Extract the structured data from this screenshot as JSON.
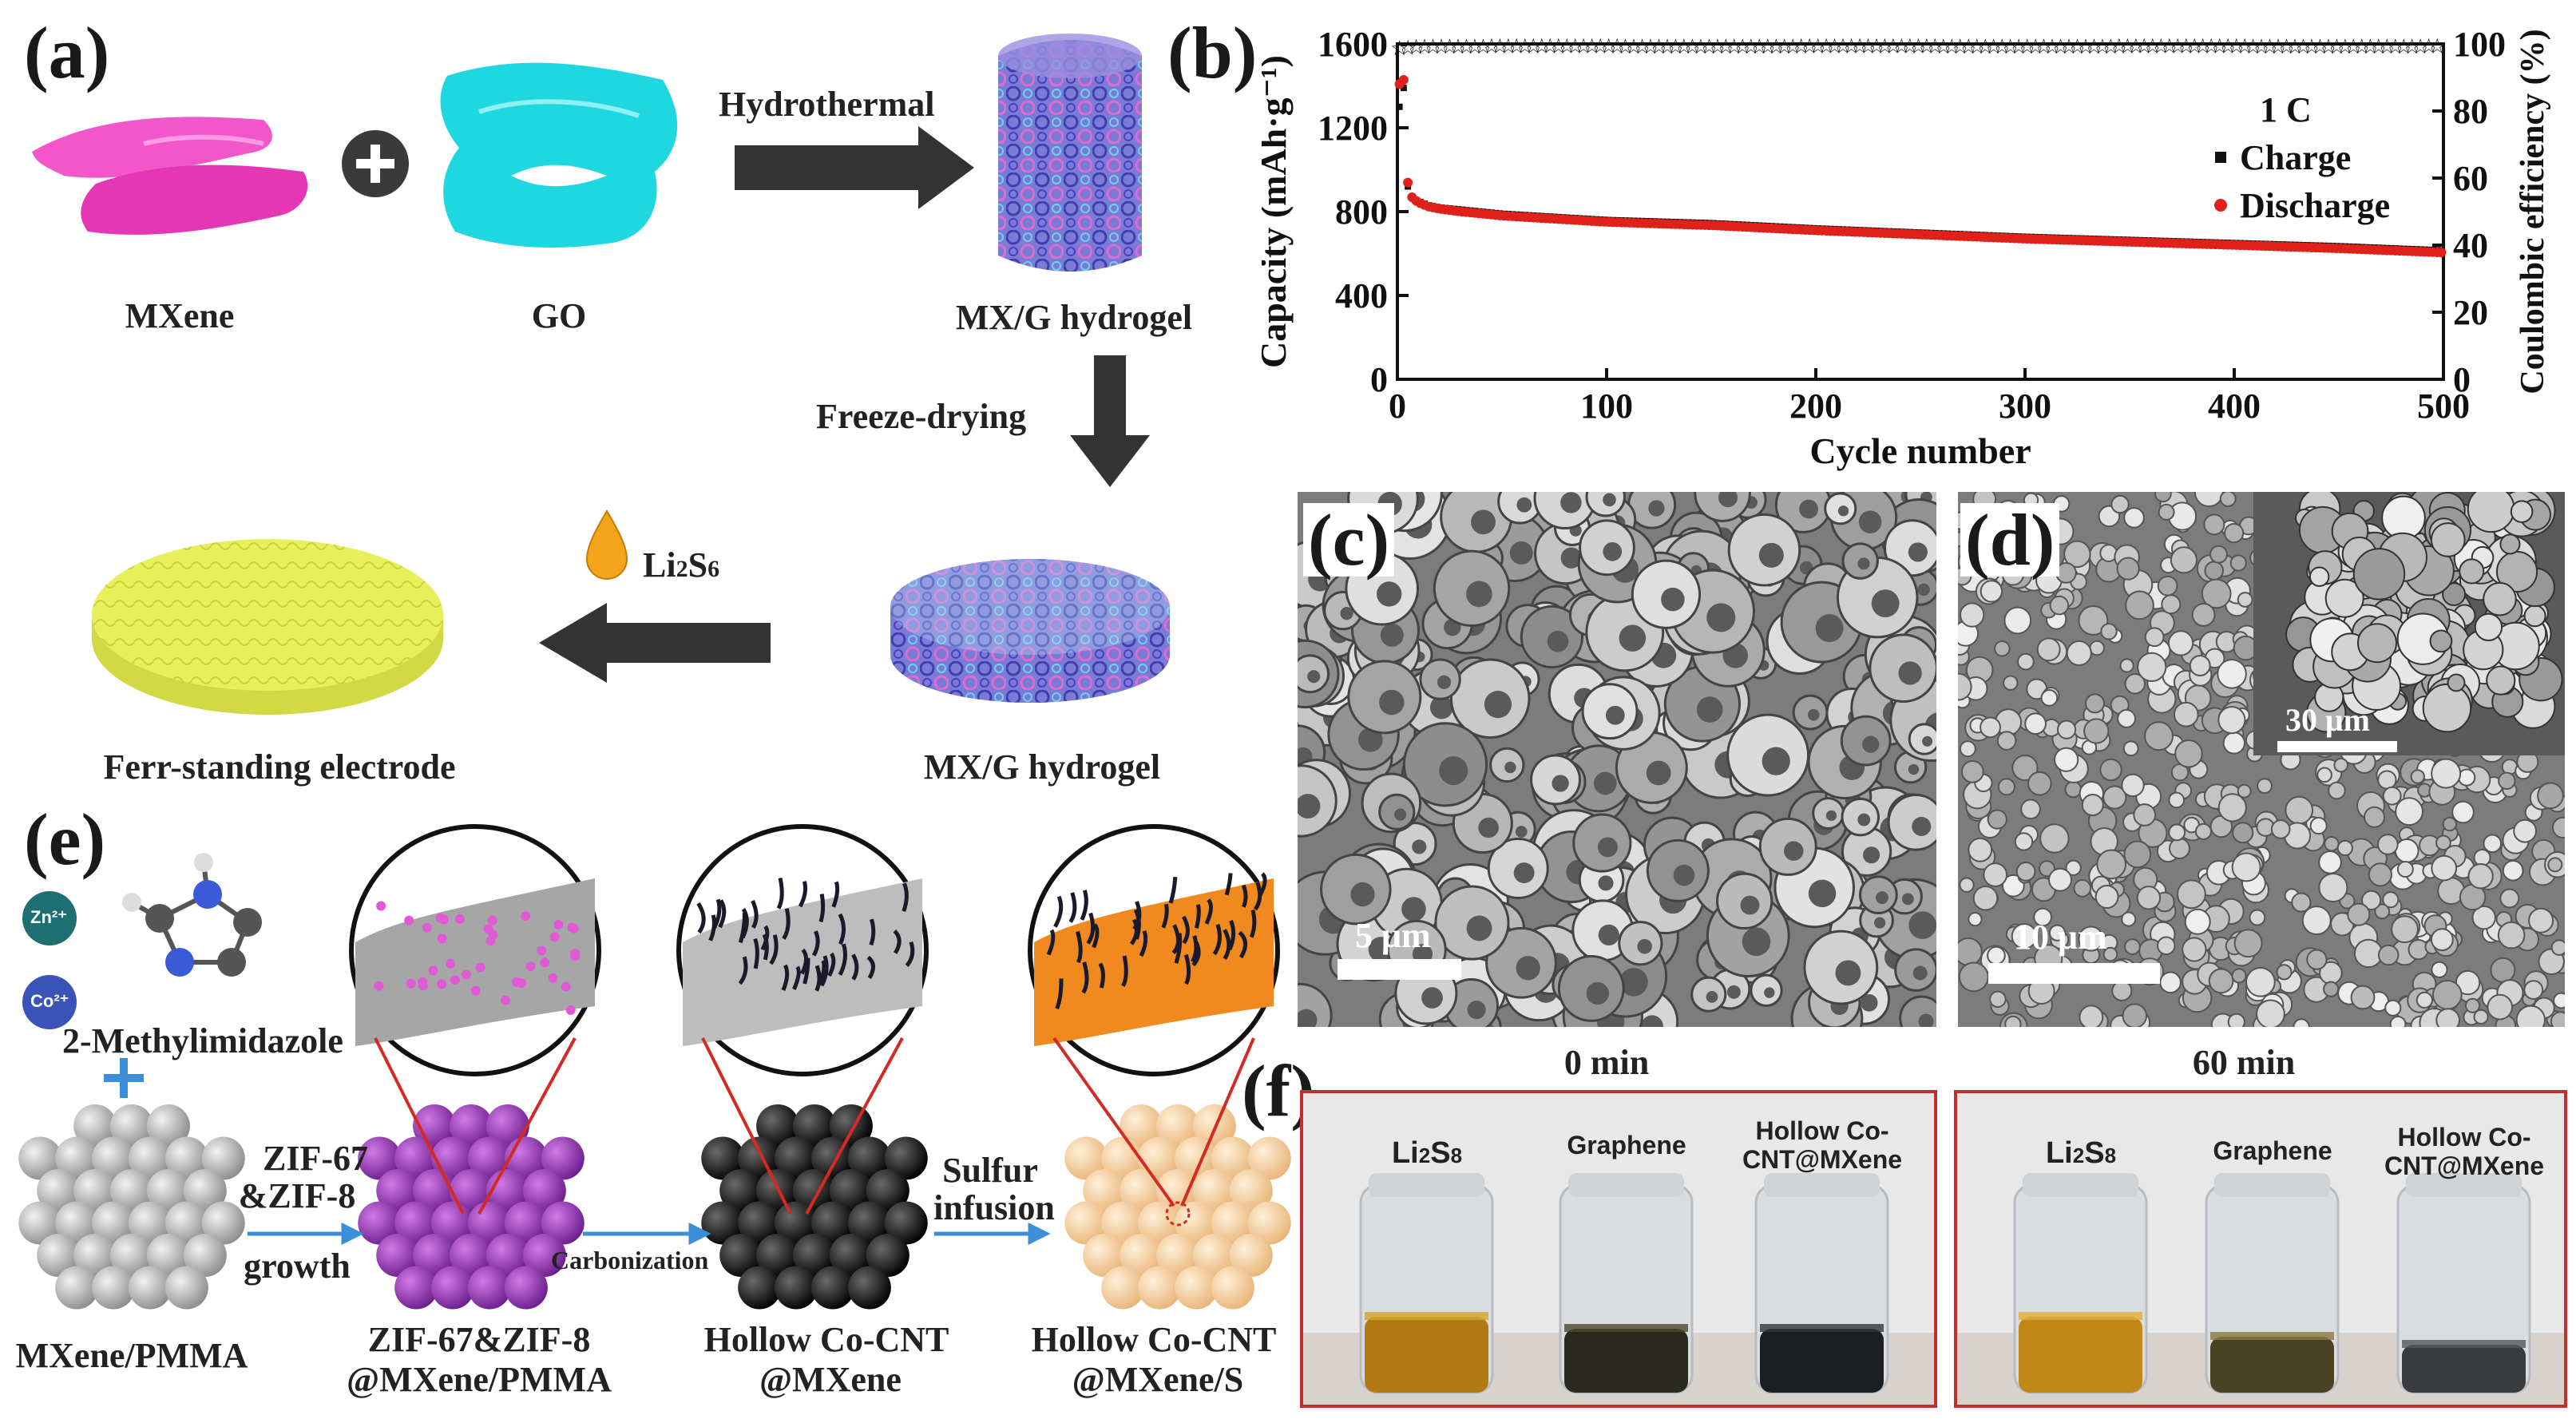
{
  "panels": {
    "a": {
      "label": "(a)",
      "mxene": "MXene",
      "go": "GO",
      "hydrothermal": "Hydrothermal",
      "hydrogel_top": "MX/G hydrogel",
      "freeze": "Freeze-drying",
      "hydrogel_bottom": "MX/G hydrogel",
      "li2s6_main": "Li",
      "li2s6_sub1": "2",
      "li2s6_mid": "S",
      "li2s6_sub2": "6",
      "electrode": "Ferr-standing electrode"
    },
    "b": {
      "label": "(b)"
    },
    "c": {
      "label": "(c)",
      "scale": "5 μm"
    },
    "d": {
      "label": "(d)",
      "scale": "10 μm",
      "inset_scale": "30 μm"
    },
    "e": {
      "label": "(e)",
      "zn": "Zn²⁺",
      "co": "Co²⁺",
      "methyl": "2-Methylimidazole",
      "zif_step_1": "ZIF-67",
      "zif_step_2": "&ZIF-8",
      "zif_step_3": "growth",
      "carbonization": "Carbonization",
      "sulfur_1": "Sulfur",
      "sulfur_2": "infusion",
      "item1": "MXene/PMMA",
      "item2_1": "ZIF-67&ZIF-8",
      "item2_2": "@MXene/PMMA",
      "item3_1": "Hollow Co-CNT",
      "item3_2": "@MXene",
      "item4_1": "Hollow Co-CNT",
      "item4_2": "@MXene/S"
    },
    "f": {
      "label": "(f)",
      "time_0": "0 min",
      "time_60": "60 min",
      "vial_li": "Li",
      "vial_li_sub1": "2",
      "vial_li_s": "S",
      "vial_li_sub2": "8",
      "vial_graphene": "Graphene",
      "vial_hollow_1": "Hollow Co-",
      "vial_hollow_2": "CNT@MXene"
    }
  },
  "chart_data": {
    "type": "scatter",
    "title": "",
    "xlabel": "Cycle number",
    "ylabel_left": "Capacity (mAh·g⁻¹)",
    "ylabel_right": "Coulombic efficiency (%)",
    "annotation": "1 C",
    "xlim": [
      0,
      500
    ],
    "ylim_left": [
      0,
      1600
    ],
    "ylim_right": [
      0,
      100
    ],
    "x_ticks": [
      0,
      100,
      200,
      300,
      400,
      500
    ],
    "y_left_ticks": [
      0,
      400,
      800,
      1200,
      1600
    ],
    "y_right_ticks": [
      0,
      20,
      40,
      60,
      80,
      100
    ],
    "legend_placement": "right",
    "series": [
      {
        "name": "Charge",
        "axis": "left",
        "color": "#111111",
        "x": [
          1,
          2,
          3,
          4,
          5,
          6,
          8,
          10,
          15,
          20,
          30,
          50,
          75,
          100,
          150,
          200,
          250,
          300,
          350,
          400,
          450,
          500
        ],
        "y": [
          1300,
          1380,
          1390,
          1360,
          920,
          880,
          860,
          850,
          830,
          820,
          810,
          790,
          775,
          760,
          745,
          720,
          700,
          680,
          665,
          650,
          635,
          615
        ]
      },
      {
        "name": "Discharge",
        "axis": "left",
        "color": "#e0201a",
        "x": [
          1,
          2,
          3,
          4,
          5,
          6,
          8,
          10,
          15,
          20,
          30,
          50,
          75,
          100,
          150,
          200,
          250,
          300,
          350,
          400,
          450,
          500
        ],
        "y": [
          1420,
          1480,
          1440,
          1400,
          950,
          890,
          870,
          855,
          835,
          825,
          812,
          792,
          777,
          762,
          746,
          722,
          702,
          682,
          667,
          652,
          636,
          616
        ]
      },
      {
        "name": "",
        "axis": "right",
        "color": "#111111",
        "x": [
          1,
          10,
          50,
          100,
          150,
          200,
          250,
          300,
          350,
          400,
          450,
          500
        ],
        "y": [
          99,
          99.5,
          99.6,
          99.6,
          99.5,
          99.6,
          99.6,
          99.5,
          99.6,
          99.6,
          99.5,
          99.6
        ]
      }
    ]
  }
}
